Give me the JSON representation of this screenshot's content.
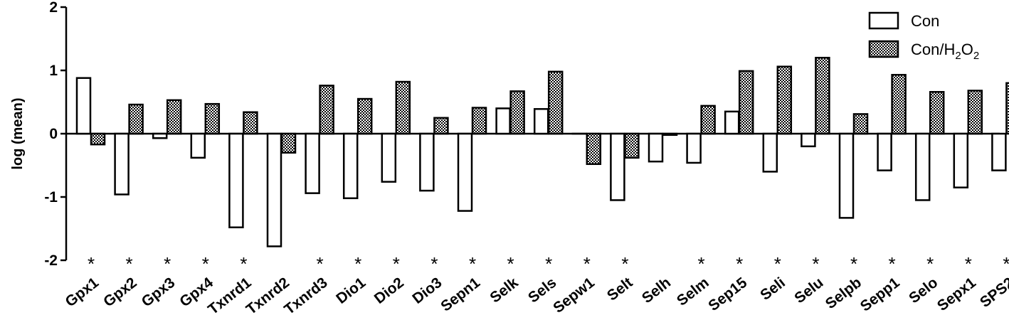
{
  "chart_data": {
    "type": "bar",
    "ylabel": "log (mean)",
    "ylim": [
      -2,
      2
    ],
    "yticks": [
      "2",
      "1",
      "0",
      "-1",
      "-2"
    ],
    "categories": [
      "Gpx1",
      "Gpx2",
      "Gpx3",
      "Gpx4",
      "Txnrd1",
      "Txnrd2",
      "Txnrd3",
      "Dio1",
      "Dio2",
      "Dio3",
      "Sepn1",
      "Selk",
      "Sels",
      "Sepw1",
      "Selt",
      "Selh",
      "Selm",
      "Sep15",
      "Seli",
      "Selu",
      "Selpb",
      "Sepp1",
      "Selo",
      "Sepx1",
      "SPS2"
    ],
    "series": [
      {
        "name": "Con",
        "fill": "white",
        "values": [
          0.88,
          -0.96,
          -0.07,
          -0.38,
          -1.48,
          -1.78,
          -0.94,
          -1.02,
          -0.76,
          -0.9,
          -1.22,
          0.4,
          0.39,
          0,
          -1.05,
          -0.44,
          -0.46,
          0.35,
          -0.6,
          -0.2,
          -1.33,
          -0.58,
          -1.05,
          -0.85,
          -0.58
        ]
      },
      {
        "name": "Con/H2O2",
        "fill": "hatched",
        "values": [
          -0.17,
          0.46,
          0.53,
          0.47,
          0.34,
          -0.3,
          0.76,
          0.55,
          0.82,
          0.25,
          0.41,
          0.67,
          0.98,
          -0.48,
          -0.38,
          -0.02,
          0.44,
          0.99,
          1.06,
          1.2,
          0.31,
          0.93,
          0.66,
          0.68,
          0.8
        ]
      }
    ],
    "significance": [
      true,
      true,
      true,
      true,
      true,
      false,
      true,
      true,
      true,
      true,
      true,
      true,
      true,
      true,
      true,
      false,
      true,
      true,
      true,
      true,
      true,
      true,
      true,
      true,
      true
    ],
    "star_symbol": "*",
    "legend": {
      "position": "top-right"
    },
    "grid": false
  },
  "legend": {
    "con": "Con",
    "h2o2_prefix": "Con/H",
    "h2o2_sub1": "2",
    "h2o2_mid": "O",
    "h2o2_sub2": "2"
  }
}
